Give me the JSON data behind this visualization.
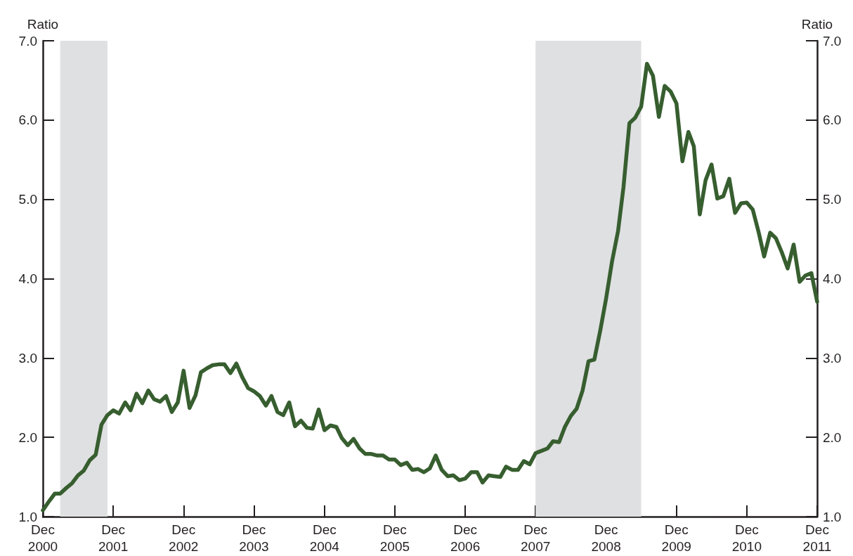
{
  "chart_data": {
    "type": "line",
    "ylabel": "Ratio",
    "y2label": "Ratio",
    "x": [
      "2000-12",
      "2001-01",
      "2001-02",
      "2001-03",
      "2001-04",
      "2001-05",
      "2001-06",
      "2001-07",
      "2001-08",
      "2001-09",
      "2001-10",
      "2001-11",
      "2001-12",
      "2002-01",
      "2002-02",
      "2002-03",
      "2002-04",
      "2002-05",
      "2002-06",
      "2002-07",
      "2002-08",
      "2002-09",
      "2002-10",
      "2002-11",
      "2002-12",
      "2003-01",
      "2003-02",
      "2003-03",
      "2003-04",
      "2003-05",
      "2003-06",
      "2003-07",
      "2003-08",
      "2003-09",
      "2003-10",
      "2003-11",
      "2003-12",
      "2004-01",
      "2004-02",
      "2004-03",
      "2004-04",
      "2004-05",
      "2004-06",
      "2004-07",
      "2004-08",
      "2004-09",
      "2004-10",
      "2004-11",
      "2004-12",
      "2005-01",
      "2005-02",
      "2005-03",
      "2005-04",
      "2005-05",
      "2005-06",
      "2005-07",
      "2005-08",
      "2005-09",
      "2005-10",
      "2005-11",
      "2005-12",
      "2006-01",
      "2006-02",
      "2006-03",
      "2006-04",
      "2006-05",
      "2006-06",
      "2006-07",
      "2006-08",
      "2006-09",
      "2006-10",
      "2006-11",
      "2006-12",
      "2007-01",
      "2007-02",
      "2007-03",
      "2007-04",
      "2007-05",
      "2007-06",
      "2007-07",
      "2007-08",
      "2007-09",
      "2007-10",
      "2007-11",
      "2007-12",
      "2008-01",
      "2008-02",
      "2008-03",
      "2008-04",
      "2008-05",
      "2008-06",
      "2008-07",
      "2008-08",
      "2008-09",
      "2008-10",
      "2008-11",
      "2008-12",
      "2009-01",
      "2009-02",
      "2009-03",
      "2009-04",
      "2009-05",
      "2009-06",
      "2009-07",
      "2009-08",
      "2009-09",
      "2009-10",
      "2009-11",
      "2009-12",
      "2010-01",
      "2010-02",
      "2010-03",
      "2010-04",
      "2010-05",
      "2010-06",
      "2010-07",
      "2010-08",
      "2010-09",
      "2010-10",
      "2010-11",
      "2010-12",
      "2011-01",
      "2011-02",
      "2011-03",
      "2011-04",
      "2011-05",
      "2011-06",
      "2011-07",
      "2011-08",
      "2011-09",
      "2011-10",
      "2011-11",
      "2011-12"
    ],
    "series": [
      {
        "color": "#375e2f",
        "values": [
          1.08,
          1.19,
          1.29,
          1.29,
          1.36,
          1.42,
          1.52,
          1.58,
          1.71,
          1.78,
          2.16,
          2.28,
          2.34,
          2.3,
          2.44,
          2.34,
          2.55,
          2.43,
          2.59,
          2.48,
          2.45,
          2.52,
          2.32,
          2.44,
          2.84,
          2.37,
          2.53,
          2.82,
          2.87,
          2.91,
          2.92,
          2.92,
          2.81,
          2.93,
          2.76,
          2.62,
          2.58,
          2.52,
          2.4,
          2.52,
          2.32,
          2.28,
          2.44,
          2.14,
          2.21,
          2.12,
          2.11,
          2.35,
          2.09,
          2.15,
          2.13,
          1.99,
          1.9,
          1.98,
          1.86,
          1.79,
          1.79,
          1.77,
          1.77,
          1.72,
          1.72,
          1.65,
          1.68,
          1.59,
          1.6,
          1.56,
          1.61,
          1.77,
          1.59,
          1.51,
          1.52,
          1.46,
          1.48,
          1.56,
          1.56,
          1.43,
          1.52,
          1.51,
          1.5,
          1.63,
          1.59,
          1.59,
          1.7,
          1.66,
          1.8,
          1.83,
          1.86,
          1.95,
          1.94,
          2.13,
          2.27,
          2.36,
          2.59,
          2.96,
          2.98,
          3.35,
          3.75,
          4.22,
          4.6,
          5.15,
          5.96,
          6.03,
          6.17,
          6.71,
          6.56,
          6.04,
          6.43,
          6.36,
          6.21,
          5.48,
          5.85,
          5.67,
          4.81,
          5.24,
          5.44,
          5.01,
          5.04,
          5.26,
          4.83,
          4.95,
          4.96,
          4.87,
          4.58,
          4.28,
          4.58,
          4.51,
          4.33,
          4.13,
          4.43,
          3.96,
          4.04,
          4.07,
          3.71
        ]
      }
    ],
    "xlim": [
      "2000-12",
      "2011-12"
    ],
    "xticks": [
      {
        "value": "2000-12",
        "label": "Dec\n2000"
      },
      {
        "value": "2001-12",
        "label": "Dec\n2001"
      },
      {
        "value": "2002-12",
        "label": "Dec\n2002"
      },
      {
        "value": "2003-12",
        "label": "Dec\n2003"
      },
      {
        "value": "2004-12",
        "label": "Dec\n2004"
      },
      {
        "value": "2005-12",
        "label": "Dec\n2005"
      },
      {
        "value": "2006-12",
        "label": "Dec\n2006"
      },
      {
        "value": "2007-12",
        "label": "Dec\n2007"
      },
      {
        "value": "2008-12",
        "label": "Dec\n2008"
      },
      {
        "value": "2009-12",
        "label": "Dec\n2009"
      },
      {
        "value": "2010-12",
        "label": "Dec\n2010"
      },
      {
        "value": "2011-12",
        "label": "Dec\n2011"
      }
    ],
    "ylim": [
      1,
      7
    ],
    "yticks": [
      {
        "value": 1,
        "label": "1.0"
      },
      {
        "value": 2,
        "label": "2.0"
      },
      {
        "value": 3,
        "label": "3.0"
      },
      {
        "value": 4,
        "label": "4.0"
      },
      {
        "value": 5,
        "label": "5.0"
      },
      {
        "value": 6,
        "label": "6.0"
      },
      {
        "value": 7,
        "label": "7.0"
      }
    ],
    "y2lim": [
      1,
      7
    ],
    "y2ticks": [
      {
        "value": 1,
        "label": "1.0"
      },
      {
        "value": 2,
        "label": "2.0"
      },
      {
        "value": 3,
        "label": "3.0"
      },
      {
        "value": 4,
        "label": "4.0"
      },
      {
        "value": 5,
        "label": "5.0"
      },
      {
        "value": 6,
        "label": "6.0"
      },
      {
        "value": 7,
        "label": "7.0"
      }
    ],
    "bands": [
      {
        "axis": "x",
        "from": "2001-03",
        "to": "2001-11",
        "color": "#dfe0e2"
      },
      {
        "axis": "x",
        "from": "2007-12",
        "to": "2009-06",
        "color": "#dfe0e2"
      }
    ],
    "grid": false,
    "marker": "none",
    "line_style": "solid"
  }
}
